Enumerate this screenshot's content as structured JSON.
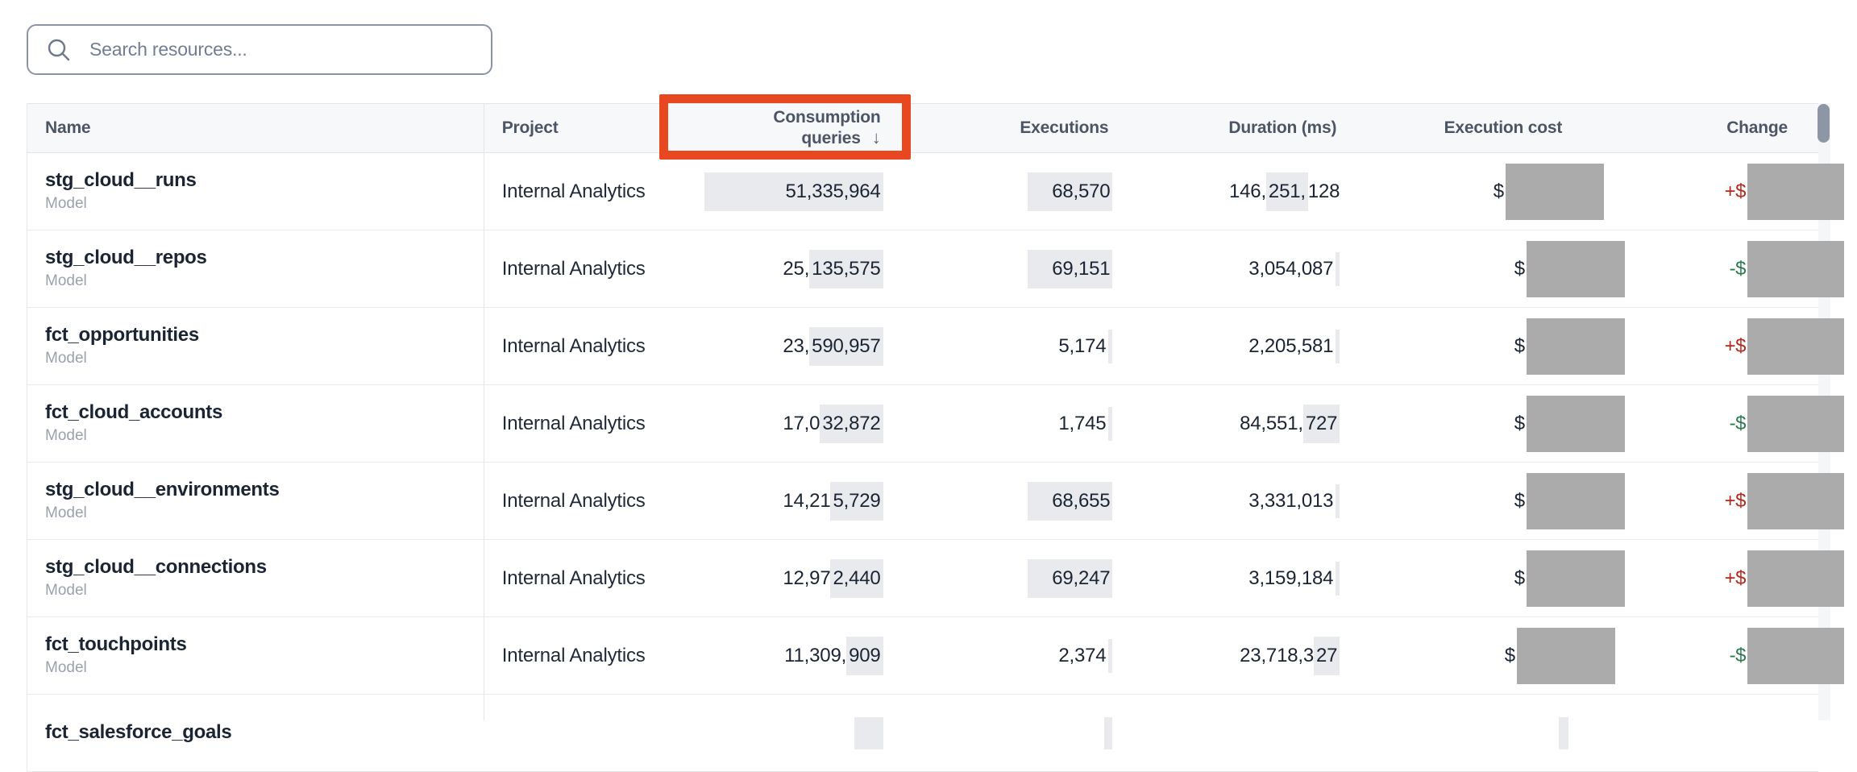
{
  "colors": {
    "annotation_red": "#e8481f",
    "positive_change_red": "#b3291d",
    "negative_change_green": "#2c7a54",
    "redaction_gray": "#ababab",
    "highlight_gray": "#e9eaee",
    "header_bg": "#f7f8f9"
  },
  "search": {
    "placeholder": "Search resources..."
  },
  "table": {
    "columns": [
      {
        "label": "Name"
      },
      {
        "label": "Project"
      },
      {
        "label": "Consumption queries",
        "sorted": true
      },
      {
        "label": "Executions"
      },
      {
        "label": "Duration (ms)"
      },
      {
        "label": "Execution cost"
      },
      {
        "label": "Change"
      }
    ],
    "sort_arrow": "↓",
    "rows": [
      {
        "name": "stg_cloud__runs",
        "type": "Model",
        "project": "Internal Analytics",
        "consumption": [
          {
            "t": "51,335,964",
            "h": true,
            "padl": 100
          }
        ],
        "executions": [
          {
            "t": "68,570",
            "h": true,
            "padl": 30
          }
        ],
        "duration": [
          {
            "t": "146,"
          },
          {
            "t": "251,",
            "h": true
          },
          {
            "t": "128"
          }
        ],
        "cost": {
          "prefix": "$",
          "redacted": true
        },
        "change": {
          "prefix": "+$",
          "dir": "up",
          "redacted": true
        }
      },
      {
        "name": "stg_cloud__repos",
        "type": "Model",
        "project": "Internal Analytics",
        "consumption": [
          {
            "t": "25,"
          },
          {
            "t": "135,575",
            "h": true
          }
        ],
        "executions": [
          {
            "t": "69,151",
            "h": true,
            "padl": 30
          }
        ],
        "duration": [
          {
            "t": "3,054,087"
          },
          {
            "tick": true
          }
        ],
        "cost": {
          "prefix": "$",
          "redacted": true
        },
        "change": {
          "prefix": "-$",
          "dir": "down",
          "redacted": true
        }
      },
      {
        "name": "fct_opportunities",
        "type": "Model",
        "project": "Internal Analytics",
        "consumption": [
          {
            "t": "23,"
          },
          {
            "t": "590,957",
            "h": true
          }
        ],
        "executions": [
          {
            "t": "5,174"
          },
          {
            "tick": true
          }
        ],
        "duration": [
          {
            "t": "2,205,581"
          },
          {
            "tick": true
          }
        ],
        "cost": {
          "prefix": "$",
          "redacted": true
        },
        "change": {
          "prefix": "+$",
          "dir": "up",
          "redacted": true
        }
      },
      {
        "name": "fct_cloud_accounts",
        "type": "Model",
        "project": "Internal Analytics",
        "consumption": [
          {
            "t": "17,0"
          },
          {
            "t": "32,872",
            "h": true
          }
        ],
        "executions": [
          {
            "t": "1,745"
          },
          {
            "tick": true
          }
        ],
        "duration": [
          {
            "t": "84,551,"
          },
          {
            "t": "727",
            "h": true
          }
        ],
        "cost": {
          "prefix": "$",
          "redacted": true
        },
        "change": {
          "prefix": "-$",
          "dir": "down",
          "redacted": true
        }
      },
      {
        "name": "stg_cloud__environments",
        "type": "Model",
        "project": "Internal Analytics",
        "consumption": [
          {
            "t": "14,21"
          },
          {
            "t": "5,729",
            "h": true
          }
        ],
        "executions": [
          {
            "t": "68,655",
            "h": true,
            "padl": 30
          }
        ],
        "duration": [
          {
            "t": "3,331,013"
          },
          {
            "tick": true
          }
        ],
        "cost": {
          "prefix": "$",
          "redacted": true
        },
        "change": {
          "prefix": "+$",
          "dir": "up",
          "redacted": true
        }
      },
      {
        "name": "stg_cloud__connections",
        "type": "Model",
        "project": "Internal Analytics",
        "consumption": [
          {
            "t": "12,97"
          },
          {
            "t": "2,440",
            "h": true
          }
        ],
        "executions": [
          {
            "t": "69,247",
            "h": true,
            "padl": 30
          }
        ],
        "duration": [
          {
            "t": "3,159,184"
          },
          {
            "tick": true
          }
        ],
        "cost": {
          "prefix": "$",
          "redacted": true
        },
        "change": {
          "prefix": "+$",
          "dir": "up",
          "redacted": true
        }
      },
      {
        "name": "fct_touchpoints",
        "type": "Model",
        "project": "Internal Analytics",
        "consumption": [
          {
            "t": "11,309,"
          },
          {
            "t": "909",
            "h": true
          }
        ],
        "executions": [
          {
            "t": "2,374"
          },
          {
            "tick": true
          }
        ],
        "duration": [
          {
            "t": "23,718,3"
          },
          {
            "t": "27",
            "h": true
          }
        ],
        "cost": {
          "prefix": "$",
          "redacted": true
        },
        "change": {
          "prefix": "-$",
          "dir": "down",
          "redacted": true
        }
      },
      {
        "name": "fct_salesforce_goals",
        "type": "",
        "project": "",
        "partial": true,
        "consumption": [
          {
            "stub": 36
          }
        ],
        "executions": [
          {
            "stub": 10
          }
        ],
        "duration": [],
        "cost": {
          "stub": 12
        },
        "change": {}
      }
    ]
  }
}
